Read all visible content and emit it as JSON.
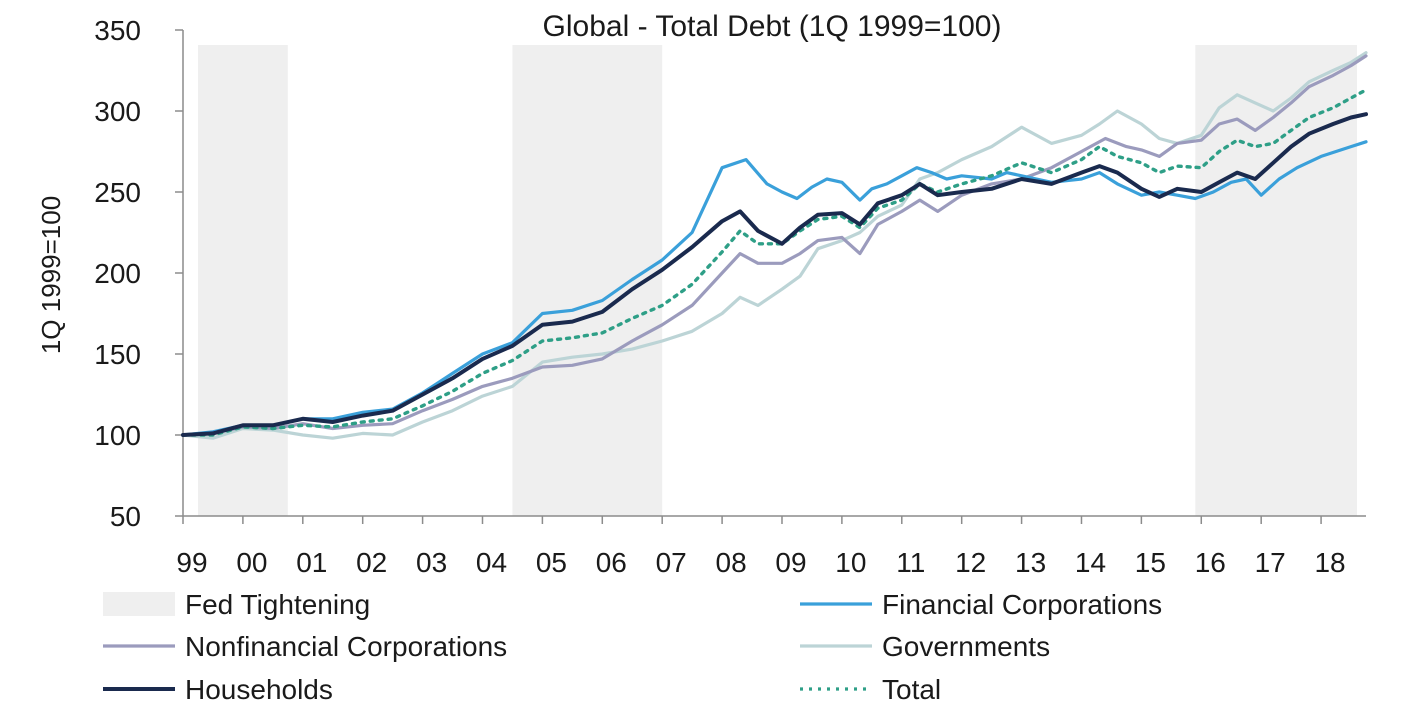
{
  "chart_data": {
    "type": "line",
    "title": "Global - Total Debt (1Q 1999=100)",
    "xlabel": "",
    "ylabel": "1Q 1999=100",
    "ylim": [
      50,
      350
    ],
    "yticks": [
      50,
      100,
      150,
      200,
      250,
      300,
      350
    ],
    "xlim": [
      1999.0,
      2018.75
    ],
    "xtick_labels": [
      "99",
      "00",
      "01",
      "02",
      "03",
      "04",
      "05",
      "06",
      "07",
      "08",
      "09",
      "10",
      "11",
      "12",
      "13",
      "14",
      "15",
      "16",
      "17",
      "18"
    ],
    "grid": false,
    "legend_position": "bottom",
    "shaded_regions": {
      "name": "Fed Tightening",
      "color": "#efefef",
      "ranges": [
        [
          1999.25,
          2000.75
        ],
        [
          2004.5,
          2007.0
        ],
        [
          2015.9,
          2018.6
        ]
      ]
    },
    "series": [
      {
        "name": "Financial Corporations",
        "color": "#3aa0da",
        "style": "solid",
        "x": [
          1999.0,
          1999.5,
          2000.0,
          2000.5,
          2001.0,
          2001.5,
          2002.0,
          2002.5,
          2003.0,
          2003.5,
          2004.0,
          2004.5,
          2005.0,
          2005.5,
          2006.0,
          2006.5,
          2007.0,
          2007.5,
          2008.0,
          2008.4,
          2008.75,
          2009.0,
          2009.25,
          2009.5,
          2009.75,
          2010.0,
          2010.3,
          2010.5,
          2010.75,
          2011.0,
          2011.25,
          2011.5,
          2011.75,
          2012.0,
          2012.5,
          2012.75,
          2013.0,
          2013.5,
          2014.0,
          2014.3,
          2014.6,
          2015.0,
          2015.3,
          2015.6,
          2015.9,
          2016.2,
          2016.5,
          2016.75,
          2017.0,
          2017.3,
          2017.6,
          2018.0,
          2018.5,
          2018.75
        ],
        "y": [
          100,
          102,
          106,
          106,
          110,
          110,
          114,
          116,
          126,
          138,
          150,
          157,
          175,
          177,
          183,
          196,
          208,
          225,
          265,
          270,
          255,
          250,
          246,
          253,
          258,
          256,
          245,
          252,
          255,
          260,
          265,
          262,
          258,
          260,
          258,
          262,
          260,
          256,
          258,
          262,
          255,
          248,
          250,
          248,
          246,
          250,
          256,
          258,
          248,
          258,
          265,
          272,
          278,
          281
        ]
      },
      {
        "name": "Nonfinancial Corporations",
        "color": "#9b9bbd",
        "style": "solid",
        "x": [
          1999.0,
          1999.5,
          2000.0,
          2000.5,
          2001.0,
          2001.5,
          2002.0,
          2002.5,
          2003.0,
          2003.5,
          2004.0,
          2004.5,
          2005.0,
          2005.5,
          2006.0,
          2006.5,
          2007.0,
          2007.5,
          2008.0,
          2008.3,
          2008.6,
          2009.0,
          2009.3,
          2009.6,
          2010.0,
          2010.3,
          2010.6,
          2011.0,
          2011.3,
          2011.6,
          2012.0,
          2012.5,
          2013.0,
          2013.5,
          2014.0,
          2014.4,
          2014.75,
          2015.0,
          2015.3,
          2015.6,
          2016.0,
          2016.3,
          2016.6,
          2016.9,
          2017.2,
          2017.5,
          2017.8,
          2018.2,
          2018.5,
          2018.75
        ],
        "y": [
          100,
          101,
          105,
          104,
          107,
          104,
          106,
          107,
          115,
          122,
          130,
          135,
          142,
          143,
          147,
          158,
          168,
          180,
          200,
          212,
          206,
          206,
          212,
          220,
          222,
          212,
          230,
          238,
          245,
          238,
          248,
          255,
          258,
          265,
          275,
          283,
          278,
          276,
          272,
          280,
          282,
          292,
          295,
          288,
          296,
          305,
          315,
          322,
          328,
          334
        ]
      },
      {
        "name": "Governments",
        "color": "#bcd4d6",
        "style": "solid",
        "x": [
          1999.0,
          1999.5,
          2000.0,
          2000.5,
          2001.0,
          2001.5,
          2002.0,
          2002.5,
          2003.0,
          2003.5,
          2004.0,
          2004.5,
          2005.0,
          2005.5,
          2006.0,
          2006.5,
          2007.0,
          2007.5,
          2008.0,
          2008.3,
          2008.6,
          2009.0,
          2009.3,
          2009.6,
          2010.0,
          2010.3,
          2010.6,
          2011.0,
          2011.3,
          2011.6,
          2012.0,
          2012.5,
          2013.0,
          2013.5,
          2014.0,
          2014.3,
          2014.6,
          2015.0,
          2015.3,
          2015.6,
          2016.0,
          2016.3,
          2016.6,
          2016.9,
          2017.2,
          2017.5,
          2017.8,
          2018.2,
          2018.5,
          2018.75
        ],
        "y": [
          100,
          98,
          104,
          103,
          100,
          98,
          101,
          100,
          108,
          115,
          124,
          130,
          145,
          148,
          150,
          153,
          158,
          164,
          175,
          185,
          180,
          190,
          198,
          215,
          220,
          225,
          235,
          242,
          258,
          262,
          270,
          278,
          290,
          280,
          285,
          292,
          300,
          292,
          283,
          280,
          285,
          302,
          310,
          305,
          300,
          308,
          318,
          325,
          330,
          336
        ]
      },
      {
        "name": "Households",
        "color": "#1a2a4e",
        "style": "solid",
        "x": [
          1999.0,
          1999.5,
          2000.0,
          2000.5,
          2001.0,
          2001.5,
          2002.0,
          2002.5,
          2003.0,
          2003.5,
          2004.0,
          2004.5,
          2005.0,
          2005.5,
          2006.0,
          2006.5,
          2007.0,
          2007.5,
          2008.0,
          2008.3,
          2008.6,
          2009.0,
          2009.3,
          2009.6,
          2010.0,
          2010.3,
          2010.6,
          2011.0,
          2011.3,
          2011.6,
          2012.0,
          2012.5,
          2013.0,
          2013.5,
          2014.0,
          2014.3,
          2014.6,
          2015.0,
          2015.3,
          2015.6,
          2016.0,
          2016.3,
          2016.6,
          2016.9,
          2017.2,
          2017.5,
          2017.8,
          2018.2,
          2018.5,
          2018.75
        ],
        "y": [
          100,
          101,
          106,
          106,
          110,
          108,
          112,
          115,
          125,
          135,
          147,
          155,
          168,
          170,
          176,
          190,
          202,
          216,
          232,
          238,
          226,
          218,
          228,
          236,
          237,
          230,
          243,
          248,
          255,
          248,
          250,
          252,
          258,
          255,
          262,
          266,
          262,
          252,
          247,
          252,
          250,
          256,
          262,
          258,
          268,
          278,
          286,
          292,
          296,
          298
        ]
      },
      {
        "name": "Total",
        "color": "#2e9f87",
        "style": "dotted",
        "x": [
          1999.0,
          1999.5,
          2000.0,
          2000.5,
          2001.0,
          2001.5,
          2002.0,
          2002.5,
          2003.0,
          2003.5,
          2004.0,
          2004.5,
          2005.0,
          2005.5,
          2006.0,
          2006.5,
          2007.0,
          2007.5,
          2008.0,
          2008.3,
          2008.6,
          2009.0,
          2009.3,
          2009.6,
          2010.0,
          2010.3,
          2010.6,
          2011.0,
          2011.3,
          2011.6,
          2012.0,
          2012.5,
          2013.0,
          2013.5,
          2014.0,
          2014.3,
          2014.6,
          2015.0,
          2015.3,
          2015.6,
          2016.0,
          2016.3,
          2016.6,
          2016.9,
          2017.2,
          2017.5,
          2017.8,
          2018.2,
          2018.5,
          2018.75
        ],
        "y": [
          100,
          100,
          105,
          104,
          106,
          105,
          108,
          110,
          118,
          127,
          138,
          146,
          158,
          160,
          163,
          172,
          180,
          193,
          213,
          226,
          218,
          218,
          226,
          233,
          235,
          228,
          240,
          245,
          255,
          250,
          255,
          260,
          268,
          262,
          270,
          278,
          272,
          268,
          262,
          266,
          265,
          275,
          282,
          278,
          280,
          288,
          296,
          302,
          308,
          313
        ]
      }
    ],
    "legend": [
      {
        "label": "Fed Tightening",
        "kind": "shade"
      },
      {
        "label": "Financial Corporations",
        "kind": "line"
      },
      {
        "label": "Nonfinancial Corporations",
        "kind": "line"
      },
      {
        "label": "Governments",
        "kind": "line"
      },
      {
        "label": "Households",
        "kind": "line"
      },
      {
        "label": "Total",
        "kind": "dotted"
      }
    ]
  }
}
